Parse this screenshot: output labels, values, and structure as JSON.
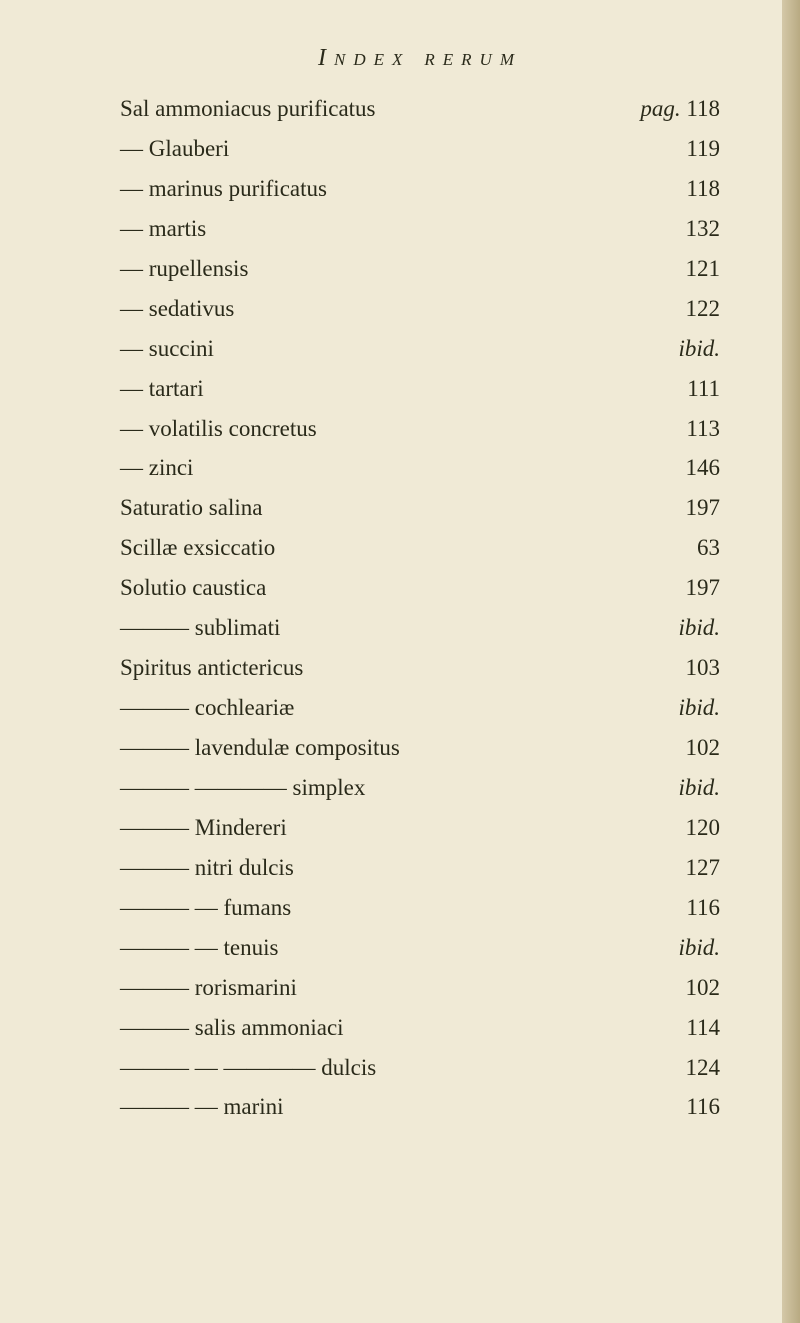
{
  "header": "Index rerum",
  "entries": [
    {
      "text": "Sal ammoniacus purificatus",
      "page": "118",
      "indent": 0,
      "pagLabel": true
    },
    {
      "text": "— Glauberi",
      "page": "119",
      "indent": 0
    },
    {
      "text": "— marinus purificatus",
      "page": "118",
      "indent": 0
    },
    {
      "text": "— martis",
      "page": "132",
      "indent": 0
    },
    {
      "text": "— rupellensis",
      "page": "121",
      "indent": 0
    },
    {
      "text": "— sedativus",
      "page": "122",
      "indent": 0
    },
    {
      "text": "— succini",
      "page": "ibid.",
      "indent": 0,
      "ital": true
    },
    {
      "text": "— tartari",
      "page": "111",
      "indent": 0
    },
    {
      "text": "— volatilis concretus",
      "page": "113",
      "indent": 0
    },
    {
      "text": "— zinci",
      "page": "146",
      "indent": 0
    },
    {
      "text": "Saturatio salina",
      "page": "197",
      "indent": 0
    },
    {
      "text": "Scillæ exsiccatio",
      "page": "63",
      "indent": 0
    },
    {
      "text": "Solutio caustica",
      "page": "197",
      "indent": 0
    },
    {
      "text": "——— sublimati",
      "page": "ibid.",
      "indent": 0,
      "ital": true
    },
    {
      "text": "Spiritus antictericus",
      "page": "103",
      "indent": 0
    },
    {
      "text": "——— cochleariæ",
      "page": "ibid.",
      "indent": 0,
      "ital": true
    },
    {
      "text": "——— lavendulæ compositus",
      "page": "102",
      "indent": 0
    },
    {
      "text": "——— ———— simplex",
      "page": "ibid.",
      "indent": 0,
      "ital": true
    },
    {
      "text": "——— Mindereri",
      "page": "120",
      "indent": 0
    },
    {
      "text": "——— nitri dulcis",
      "page": "127",
      "indent": 0
    },
    {
      "text": "——— — fumans",
      "page": "116",
      "indent": 0
    },
    {
      "text": "——— — tenuis",
      "page": "ibid.",
      "indent": 0,
      "ital": true
    },
    {
      "text": "——— rorismarini",
      "page": "102",
      "indent": 0
    },
    {
      "text": "——— salis ammoniaci",
      "page": "114",
      "indent": 0
    },
    {
      "text": "——— — ———— dulcis",
      "page": "124",
      "indent": 0
    },
    {
      "text": "——— — marini",
      "page": "116",
      "indent": 0
    }
  ]
}
